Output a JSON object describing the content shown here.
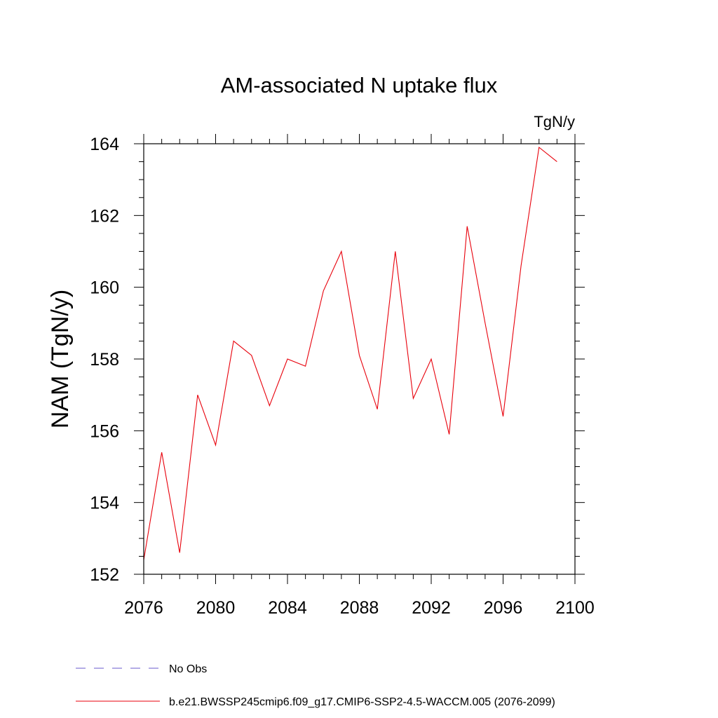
{
  "chart_data": {
    "type": "line",
    "title": "AM-associated N uptake flux",
    "units": "TgN/y",
    "ylabel": "NAM  (TgN/y)",
    "xlabel": "",
    "xlim": [
      2076,
      2100
    ],
    "ylim": [
      152,
      164
    ],
    "x_ticks": [
      2076,
      2080,
      2084,
      2088,
      2092,
      2096,
      2100
    ],
    "y_ticks": [
      152,
      154,
      156,
      158,
      160,
      162,
      164
    ],
    "x_tick_labels": [
      "2076",
      "2080",
      "2084",
      "2088",
      "2092",
      "2096",
      "2100"
    ],
    "y_tick_labels": [
      "152",
      "154",
      "156",
      "158",
      "160",
      "162",
      "164"
    ],
    "grid": false,
    "legend_position": "bottom",
    "series": [
      {
        "name": "b.e21.BWSSP245cmip6.f09_g17.CMIP6-SSP2-4.5-WACCM.005 (2076-2099)",
        "color": "#e8000b",
        "style": "solid",
        "x": [
          2076,
          2077,
          2078,
          2079,
          2080,
          2081,
          2082,
          2083,
          2084,
          2085,
          2086,
          2087,
          2088,
          2089,
          2090,
          2091,
          2092,
          2093,
          2094,
          2095,
          2096,
          2097,
          2098,
          2099
        ],
        "values": [
          152.4,
          155.4,
          152.6,
          157.0,
          155.6,
          158.5,
          158.1,
          156.7,
          158.0,
          157.8,
          159.9,
          161.0,
          158.1,
          156.6,
          161.0,
          156.9,
          158.0,
          155.9,
          161.7,
          159.0,
          156.4,
          160.6,
          163.9,
          163.5
        ]
      }
    ],
    "legend": [
      {
        "label": "No Obs",
        "color": "#6a5acd",
        "style": "dashed"
      },
      {
        "label": "b.e21.BWSSP245cmip6.f09_g17.CMIP6-SSP2-4.5-WACCM.005 (2076-2099)",
        "color": "#e8000b",
        "style": "solid"
      }
    ]
  }
}
